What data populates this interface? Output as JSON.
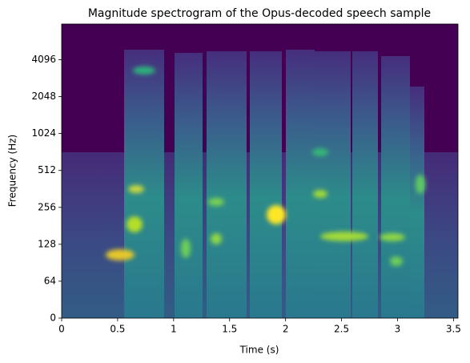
{
  "chart_data": {
    "type": "spectrogram",
    "title": "Magnitude spectrogram of the Opus-decoded speech sample",
    "x_label": "Time (s)",
    "y_label": "Frequency (Hz)",
    "xlim": [
      0,
      3.54
    ],
    "xticks": [
      0,
      0.5,
      1,
      1.5,
      2,
      2.5,
      3,
      3.5
    ],
    "ylim": [
      0,
      8000
    ],
    "yticks": [
      0,
      64,
      128,
      256,
      512,
      1024,
      2048,
      4096
    ],
    "yscale": "symlog",
    "linthresh": 64,
    "colormap": "viridis"
  }
}
